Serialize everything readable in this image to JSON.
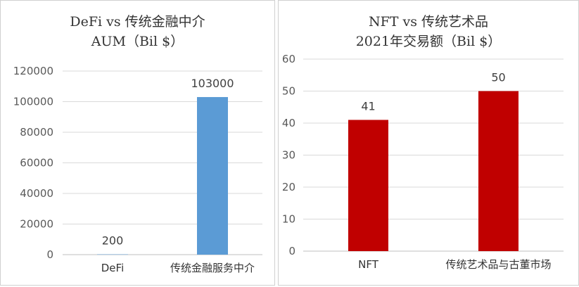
{
  "chart_data": [
    {
      "type": "bar",
      "title": "DeFi vs 传统金融中介",
      "subtitle": "AUM（Bil $）",
      "categories": [
        "DeFi",
        "传统金融服务中介"
      ],
      "values": [
        200,
        103000
      ],
      "value_labels": [
        "200",
        "103000"
      ],
      "ylim": [
        0,
        120000
      ],
      "yticks": [
        "0",
        "20000",
        "40000",
        "60000",
        "80000",
        "100000",
        "120000"
      ],
      "bar_color": "#5b9bd5",
      "grid": true,
      "legend": "none"
    },
    {
      "type": "bar",
      "title": "NFT vs 传统艺术品",
      "subtitle": "2021年交易额（Bil $）",
      "categories": [
        "NFT",
        "传统艺术品与古董市场"
      ],
      "values": [
        41,
        50
      ],
      "value_labels": [
        "41",
        "50"
      ],
      "ylim": [
        0,
        60
      ],
      "yticks": [
        "0",
        "10",
        "20",
        "30",
        "40",
        "50",
        "60"
      ],
      "bar_color": "#c00000",
      "grid": true,
      "legend": "none"
    }
  ]
}
